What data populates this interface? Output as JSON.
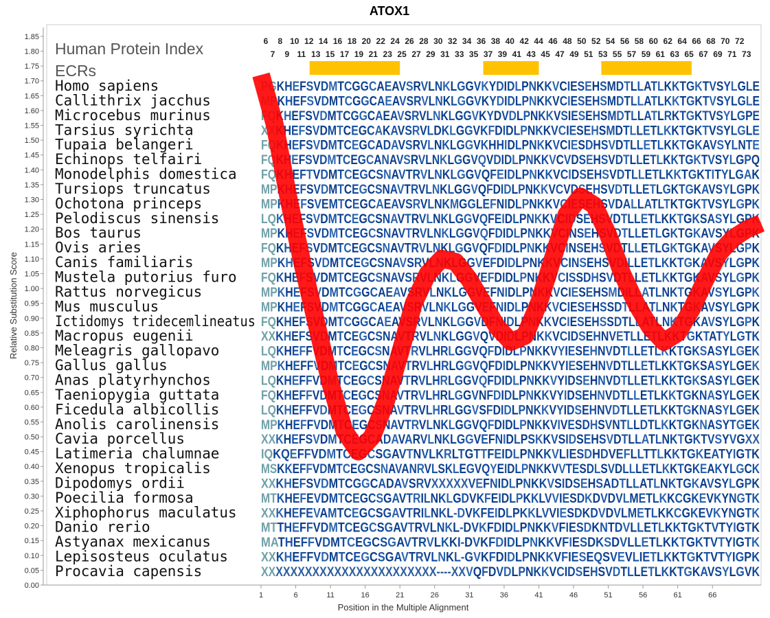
{
  "chart_data": {
    "type": "line",
    "title": "ATOX1",
    "xlabel": "Position in the Multiple Alignment",
    "ylabel": "Relative Substitution Score",
    "xlim": [
      0,
      72
    ],
    "ylim": [
      0,
      1.88
    ],
    "y_ticks": [
      "0.00",
      "0.05",
      "0.10",
      "0.15",
      "0.20",
      "0.25",
      "0.30",
      "0.35",
      "0.40",
      "0.45",
      "0.50",
      "0.55",
      "0.60",
      "0.65",
      "0.70",
      "0.75",
      "0.80",
      "0.85",
      "0.90",
      "0.95",
      "1.00",
      "1.05",
      "1.10",
      "1.15",
      "1.20",
      "1.25",
      "1.30",
      "1.35",
      "1.40",
      "1.45",
      "1.50",
      "1.55",
      "1.60",
      "1.65",
      "1.70",
      "1.75",
      "1.80",
      "1.85"
    ],
    "x_ticks": [
      "1",
      "6",
      "11",
      "16",
      "21",
      "26",
      "31",
      "36",
      "41",
      "46",
      "51",
      "56",
      "61",
      "66"
    ],
    "grid": false,
    "legend": "none",
    "header_left_1": "Human Protein Index",
    "header_left_2": "ECRs",
    "index_top": [
      "6",
      "8",
      "10",
      "12",
      "14",
      "16",
      "18",
      "20",
      "22",
      "24",
      "26",
      "28",
      "30",
      "32",
      "34",
      "36",
      "38",
      "40",
      "42",
      "44",
      "46",
      "48",
      "50",
      "52",
      "54",
      "56",
      "58",
      "60",
      "62",
      "64",
      "66",
      "68",
      "70",
      "72"
    ],
    "index_bottom": [
      "7",
      "9",
      "11",
      "13",
      "15",
      "17",
      "19",
      "21",
      "23",
      "25",
      "27",
      "29",
      "31",
      "33",
      "35",
      "37",
      "39",
      "41",
      "43",
      "45",
      "47",
      "49",
      "51",
      "53",
      "55",
      "57",
      "59",
      "61",
      "63",
      "65",
      "67",
      "69",
      "71",
      "73"
    ],
    "ecr_regions": [
      [
        7,
        20
      ],
      [
        32,
        40
      ],
      [
        49,
        62
      ]
    ],
    "species": [
      "Homo sapiens",
      "Callithrix jacchus",
      "Microcebus murinus",
      "Tarsius syrichta",
      "Tupaia belangeri",
      "Echinops telfairi",
      "Monodelphis domestica",
      "Tursiops truncatus",
      "Ochotona princeps",
      "Pelodiscus sinensis",
      "Bos taurus",
      "Ovis aries",
      "Canis familiaris",
      "Mustela putorius furo",
      "Rattus norvegicus",
      "Mus musculus",
      "Ictidomys tridecemlineatus",
      "Macropus eugenii",
      "Meleagris gallopavo",
      "Gallus gallus",
      "Anas platyrhynchos",
      "Taeniopygia guttata",
      "Ficedula albicollis",
      "Anolis carolinensis",
      "Cavia porcellus",
      "Latimeria chalumnae",
      "Xenopus tropicalis",
      "Dipodomys ordii",
      "Poecilia formosa",
      "Xiphophorus maculatus",
      "Danio rerio",
      "Astyanax mexicanus",
      "Lepisosteus oculatus",
      "Procavia capensis"
    ],
    "sequences": [
      "PGKHEFSVDMTCGGCAEAVSRVLNKLGGVKYDIDLPNKKVCIESEHSMDTLLATLKKTGKTVSYLGLE",
      "MPKHEFSVDMTCGGCAEAVSRVLNKLGGVKYDIDLPNKKVCIESEHSMDTLLATLKKTGKTVSYLGLE",
      "FQKHEFSVDMTCGGCAEAVSRVLNKLGGVKYDVDLPNKKVSIESEHSMDTLLATLRKTGKTVSYLGPE",
      "XXKHEFSVDMTCEGCAKAVSRVLDKLGGVKFDIDLPNKKVCIESEHSMDTLLETLKKTGKTVSYLGLE",
      "FQKHEFSVDMTCEGCADAVSRVLNKLGGVKHHIDLPNKKVCIESDHSVDTLLETLKKTGKAVSYLNTE",
      "FQKHEFSVDMTCEGCANAVSRVLNKLGGVQVDIDLPNKKVCVDSEHSVDTLLETLKKTGKTVSYLGPQ",
      "FQKHEFTVDMTCEGCSNAVTRVLNKLGGVQFEIDLPNKKVCIDSEHSVDTLLETLKKTGKTITYLGAK",
      "MPKHEFSVDMTCEGCSNAVTRVLNKLGGVQFDIDLPNKKVCVDSEHSVDTLLETLGKTGKAVSYLGPK",
      "MPKHEFSVEMTCEGCAEAVSRVLNKMGGLEFNIDLPNKKVCIESEHSVDALLATLTKTGKTVSYLGPK",
      "LQKHEFSVDMTCEGCSNAVTRVLNKLGGVQFEIDLPNKKVCIDSEHSVDTLLETLKKTGKSASYLGPK",
      "MPKHEFSVDMTCEGCSNAVTRVLNKLGGVQFDIDLPNKKVCINSEHSVDTLLETLGKTGKAVSYLGPK",
      "FQKHEFSVDMTCEGCSNAVTRVLNKLGGVQFDIDLPNKKVCINSEHSVDTLLETLGKTGKAVSYLGPK",
      "MPKHEFSVDMTCEGCSNAVSRVLNKLGGVEFDIDLPNKKVCINSEHSVDILLETLKKTGKAVSYLGPK",
      "FQKHEFSVDMTCEGCSNAVSRVLNKLGGVEFDIDLPNKKVCISSDHSVDTLLETLKKTGKAVSYLGPK",
      "MPKHEFSVDMTCGGCAEAVSRVLNKLGGVEFNIDLPNKKVCIESEHSMDILLATLNKTGKAVSYLGPK",
      "MPKHEFSVDMTCGGCAEAVSRVLNKLGGVEFNIDLPNKKVCIESEHSSDTLLATLNKTGKAVSYLGPK",
      "FQKHEFSVDMTCGGCAEAVSRVLNKLGGVDFNIDLPNKKVCIESEHSSDTLLATLNKTGKAVSYLGPK",
      "XXKHEFSVDMTCEGCSNAVTRVLNKLGGVQVDIDLPNKKVCIDSEHNVETLLETLKKTGKTATYLGTK",
      "LQKHEFFVDMTCEGCSNAVTRVLHRLGGVQFDIDLPNKKVYIESEHNVDTLLETLKKTGKSASYLGEK",
      "MPKHEFFVDMTCEGCSNAVTRVLHRLGGVQFDIDLPNKKVYIESEHNVDTLLETLKKTGKSASYLGEK",
      "LQKHEFFVDMTCEGCSNAVTRVLHRLGGVQFDIDLPNKKVYIDSEHNVDTLLETLKKTGKSASYLGEK",
      "FQKHEFFVDMTCEGCSNAVTRVLHRLGGVNFDIDLPNKKVYIDSEHNVDTLLETLKKTGKNASYLGEK",
      "LQKHEFFVDMTCEGCSNAVTRVLHRLGGVSFDIDLPNKKVYIDSEHNVDTLLETLKKTGKNASYLGEK",
      "MPKHEFFVDMTCEGCSNAVTRVLNKLGGVQFDIDLPNKKVIVESDHSVNTLLDTLKKTGKNASYTGEK",
      "XXKHEFSVDMTCEGCADAVARVLNKLGGVEFNIDLPSKKVSIDSEHSVDTLLATLNKTGKTVSYVGXX",
      "IQKQEFFVDMTCEGCSGAVTNVLKRLTGTTFEIDLPNKKVLIESDHDVEFLLTTLKKTGKEATYIGTK",
      "MSKKEFFVDMTCEGCSNAVANRVLSKLEGVQYEIDLPNKKVVTESDLSVDLLLETLKKTGKEAKYLGCK",
      "XXKHEFSVDMTCGGCADAVSRVXXXXXVEFNIDLPNKKVSIDSEHSADTLLATLNKTGKAVSYLGPK",
      "MTKHEFEVDMTCEGCSGAVTRILNKLGDVKFEIDLPKKLVVIESDKDVDVLMETLKKCGKEVKYNGTK",
      "XXKHEFEVAMTCEGCSGAVTRILNKL-DVKFEIDLPKKLVVIESDKDVDVLMETLKKCGKEVKYNGTK",
      "MTTHEFFVDMTCEGCSGAVTRVLNKL-DVKFDIDLPNKKVFIESDKNTDVLLETLKKTGKTVTYIGTK",
      "MATHEFFVDMTCEGCSGAVTRVLKKI-DVKFDIDLPNKKVFIESDKSDVLLETLKKTGKTVTYIGTK",
      "XXKHEFFVDMTCEGCSGAVTRVLNKL-GVKFDIDLPNKKVFIESEQSVEVLIETLKKTGKTVTYIGPK",
      "XXXXXXXXXXXXXXXXXXXXXXXX----XXVQFDVDLPNKKVCIDSEHSVDTLLETLKKTGKAVSYLGVK"
    ],
    "series": [
      {
        "x": [
          0,
          2,
          4,
          6,
          8,
          10,
          12,
          14,
          16,
          18,
          20,
          22,
          24,
          26,
          28,
          30,
          32,
          34,
          36,
          38,
          40,
          42,
          44,
          46,
          48,
          50,
          52,
          54,
          56,
          58,
          60,
          62,
          64,
          66,
          68,
          70,
          72
        ],
        "values": [
          1.72,
          1.55,
          1.3,
          1.08,
          0.88,
          0.68,
          0.52,
          0.45,
          0.5,
          0.62,
          0.78,
          0.95,
          1.05,
          1.1,
          1.09,
          1.03,
          0.95,
          0.87,
          0.82,
          0.84,
          0.95,
          1.1,
          1.25,
          1.31,
          1.28,
          1.18,
          1.05,
          0.95,
          0.87,
          0.82,
          0.85,
          0.93,
          1.03,
          1.12,
          1.17,
          1.2,
          1.22
        ]
      }
    ]
  }
}
